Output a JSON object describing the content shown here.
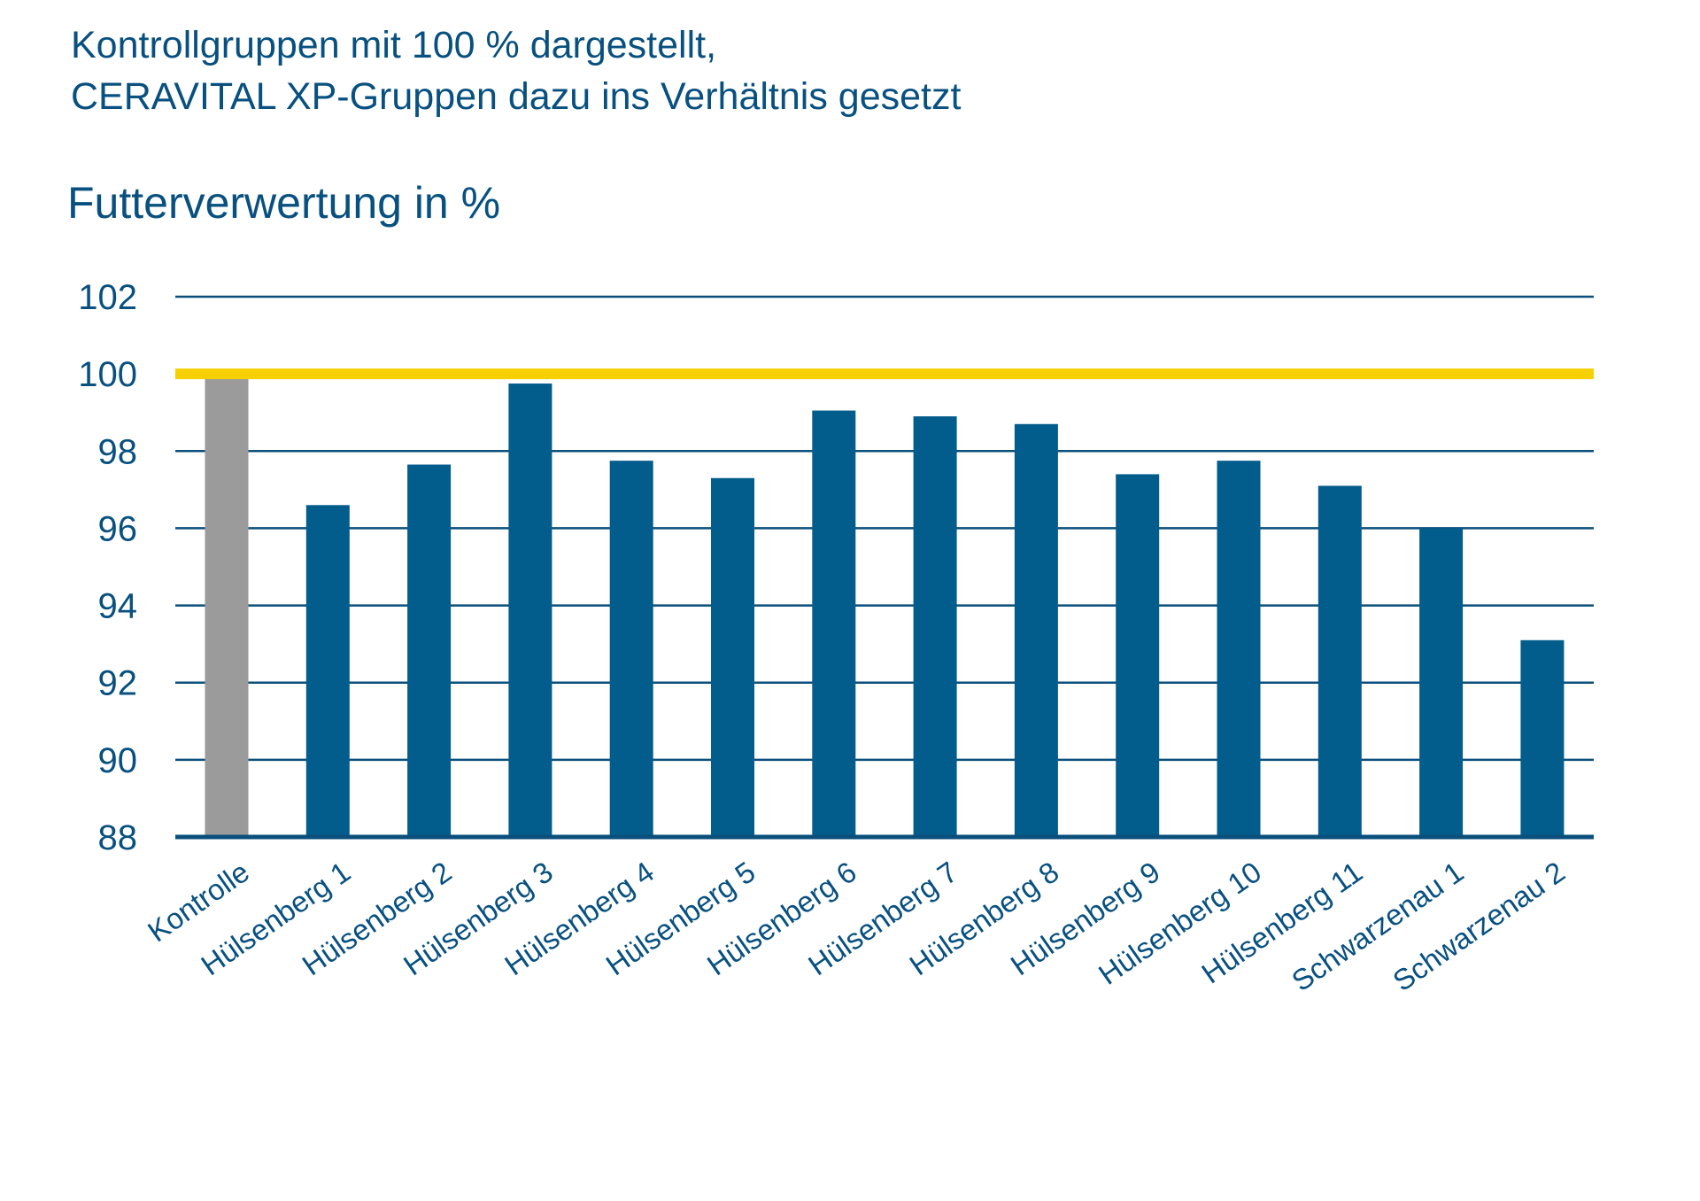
{
  "header": {
    "line1": "Kontrollgruppen mit 100 % dargestellt,",
    "line2": "CERAVITAL XP-Gruppen dazu ins Verhältnis gesetzt"
  },
  "colors": {
    "text": "#08507f",
    "bar": "#025c8c",
    "control_bar": "#9b9b9b",
    "reference_line": "#f6d000",
    "gridline": "#0b4f7c"
  },
  "chart_data": {
    "type": "bar",
    "title": "Futterverwertung in %",
    "xlabel": "",
    "ylabel": "",
    "ylim": [
      88,
      102
    ],
    "yticks": [
      88,
      90,
      92,
      94,
      96,
      98,
      100,
      102
    ],
    "grid": true,
    "reference_line": 100,
    "categories": [
      "Kontrolle",
      "Hülsenberg 1",
      "Hülsenberg 2",
      "Hülsenberg 3",
      "Hülsenberg 4",
      "Hülsenberg 5",
      "Hülsenberg 6",
      "Hülsenberg 7",
      "Hülsenberg 8",
      "Hülsenberg 9",
      "Hülsenberg 10",
      "Hülsenberg 11",
      "Schwarzenau 1",
      "Schwarzenau 2"
    ],
    "values": [
      100,
      96.6,
      97.65,
      99.75,
      97.75,
      97.3,
      99.05,
      98.9,
      98.7,
      97.4,
      97.75,
      97.1,
      96.0,
      93.1
    ]
  }
}
